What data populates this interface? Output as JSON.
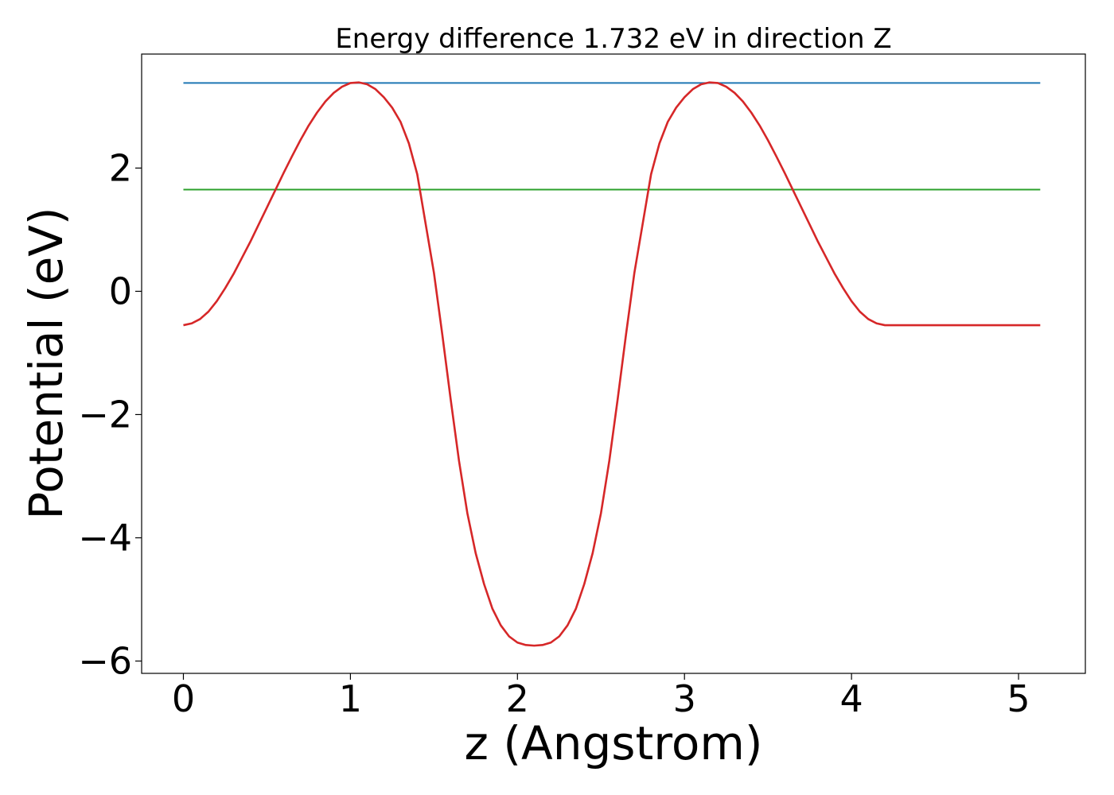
{
  "chart_data": {
    "type": "line",
    "title": "Energy difference 1.732 eV in direction Z",
    "xlabel": "z (Angstrom)",
    "ylabel": "Potential (eV)",
    "xlim": [
      -0.25,
      5.4
    ],
    "ylim": [
      -6.2,
      3.85
    ],
    "xticks": [
      {
        "value": 0,
        "label": "0"
      },
      {
        "value": 1,
        "label": "1"
      },
      {
        "value": 2,
        "label": "2"
      },
      {
        "value": 3,
        "label": "3"
      },
      {
        "value": 4,
        "label": "4"
      },
      {
        "value": 5,
        "label": "5"
      }
    ],
    "yticks": [
      {
        "value": -6,
        "label": "−6"
      },
      {
        "value": -4,
        "label": "−4"
      },
      {
        "value": -2,
        "label": "−2"
      },
      {
        "value": 0,
        "label": "0"
      },
      {
        "value": 2,
        "label": "2"
      }
    ],
    "grid": false,
    "series": [
      {
        "color": "#1f77b4",
        "x": [
          0,
          5.13
        ],
        "y": [
          3.38,
          3.38
        ]
      },
      {
        "color": "#2ca02c",
        "x": [
          0,
          5.13
        ],
        "y": [
          1.65,
          1.65
        ]
      },
      {
        "color": "#d62728",
        "x": [
          0.0,
          0.05,
          0.1,
          0.15,
          0.2,
          0.25,
          0.3,
          0.35,
          0.4,
          0.45,
          0.5,
          0.55,
          0.6,
          0.65,
          0.7,
          0.75,
          0.8,
          0.85,
          0.9,
          0.95,
          1.0,
          1.05,
          1.1,
          1.15,
          1.2,
          1.25,
          1.3,
          1.35,
          1.4,
          1.45,
          1.5,
          1.55,
          1.6,
          1.65,
          1.7,
          1.75,
          1.8,
          1.85,
          1.9,
          1.95,
          2.0,
          2.05,
          2.1,
          2.15,
          2.2,
          2.25,
          2.3,
          2.35,
          2.4,
          2.45,
          2.5,
          2.55,
          2.6,
          2.65,
          2.7,
          2.75,
          2.8,
          2.85,
          2.9,
          2.95,
          3.0,
          3.05,
          3.1,
          3.15,
          3.2,
          3.25,
          3.3,
          3.35,
          3.4,
          3.45,
          3.5,
          3.55,
          3.6,
          3.65,
          3.7,
          3.75,
          3.8,
          3.85,
          3.9,
          3.95,
          4.0,
          4.05,
          4.1,
          4.15,
          4.2,
          4.25,
          4.3,
          4.35,
          4.4,
          4.45,
          4.5,
          4.55,
          4.6,
          4.65,
          4.7,
          4.75,
          4.8,
          4.85,
          4.9,
          4.95,
          5.0,
          5.05,
          5.1,
          5.13
        ],
        "y": [
          -0.55,
          -0.52,
          -0.45,
          -0.33,
          -0.16,
          0.05,
          0.28,
          0.54,
          0.8,
          1.08,
          1.36,
          1.64,
          1.92,
          2.19,
          2.45,
          2.69,
          2.9,
          3.08,
          3.22,
          3.32,
          3.38,
          3.39,
          3.36,
          3.28,
          3.15,
          2.98,
          2.75,
          2.4,
          1.9,
          1.1,
          0.3,
          -0.7,
          -1.75,
          -2.75,
          -3.6,
          -4.25,
          -4.75,
          -5.15,
          -5.42,
          -5.6,
          -5.7,
          -5.74,
          -5.75,
          -5.74,
          -5.7,
          -5.6,
          -5.42,
          -5.15,
          -4.75,
          -4.25,
          -3.6,
          -2.75,
          -1.75,
          -0.7,
          0.3,
          1.1,
          1.9,
          2.4,
          2.75,
          2.98,
          3.15,
          3.28,
          3.36,
          3.39,
          3.38,
          3.32,
          3.22,
          3.08,
          2.9,
          2.69,
          2.45,
          2.19,
          1.92,
          1.64,
          1.36,
          1.08,
          0.8,
          0.54,
          0.28,
          0.05,
          -0.16,
          -0.33,
          -0.45,
          -0.52,
          -0.55,
          -0.55,
          -0.55,
          -0.55,
          -0.55,
          -0.55,
          -0.55,
          -0.55,
          -0.55,
          -0.55,
          -0.55,
          -0.55,
          -0.55,
          -0.55,
          -0.55,
          -0.55,
          -0.55,
          -0.55,
          -0.55,
          -0.55
        ]
      }
    ]
  }
}
